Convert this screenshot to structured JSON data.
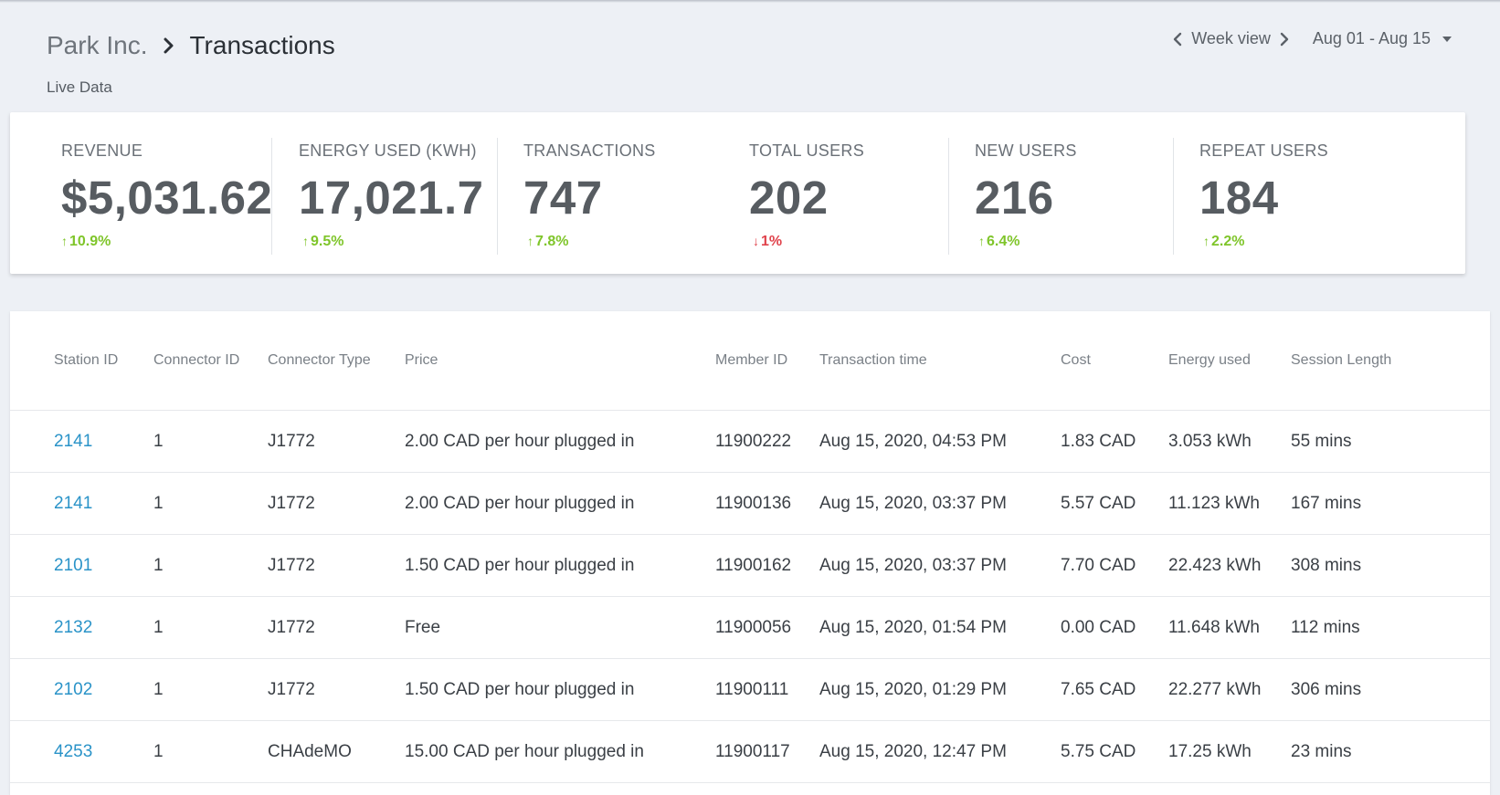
{
  "header": {
    "org": "Park Inc.",
    "page": "Transactions",
    "subtitle": "Live Data",
    "view_label": "Week view",
    "date_range": "Aug 01 - Aug 15"
  },
  "kpis": [
    {
      "label": "REVENUE",
      "value": "$5,031.62",
      "delta": "10.9%",
      "direction": "up"
    },
    {
      "label": "ENERGY USED (KWH)",
      "value": "17,021.7",
      "delta": "9.5%",
      "direction": "up"
    },
    {
      "label": "TRANSACTIONS",
      "value": "747",
      "delta": "7.8%",
      "direction": "up"
    },
    {
      "label": "TOTAL USERS",
      "value": "202",
      "delta": "1%",
      "direction": "down"
    },
    {
      "label": "NEW USERS",
      "value": "216",
      "delta": "6.4%",
      "direction": "up"
    },
    {
      "label": "REPEAT USERS",
      "value": "184",
      "delta": "2.2%",
      "direction": "up"
    }
  ],
  "table": {
    "columns": [
      "Station ID",
      "Connector ID",
      "Connector Type",
      "Price",
      "Member ID",
      "Transaction time",
      "Cost",
      "Energy used",
      "Session Length"
    ],
    "rows": [
      [
        "2141",
        "1",
        "J1772",
        "2.00 CAD per hour plugged in",
        "11900222",
        "Aug 15, 2020, 04:53 PM",
        "1.83 CAD",
        "3.053 kWh",
        "55 mins"
      ],
      [
        "2141",
        "1",
        "J1772",
        "2.00 CAD per hour plugged in",
        "11900136",
        "Aug 15, 2020, 03:37 PM",
        "5.57 CAD",
        "11.123 kWh",
        "167 mins"
      ],
      [
        "2101",
        "1",
        "J1772",
        "1.50 CAD per hour plugged in",
        "11900162",
        "Aug 15, 2020, 03:37 PM",
        "7.70 CAD",
        "22.423 kWh",
        "308 mins"
      ],
      [
        "2132",
        "1",
        "J1772",
        "Free",
        "11900056",
        "Aug 15, 2020, 01:54 PM",
        "0.00 CAD",
        "11.648 kWh",
        "112 mins"
      ],
      [
        "2102",
        "1",
        "J1772",
        "1.50 CAD per hour plugged in",
        "11900111",
        "Aug 15, 2020, 01:29 PM",
        "7.65 CAD",
        "22.277 kWh",
        "306 mins"
      ],
      [
        "4253",
        "1",
        "CHAdeMO",
        "15.00 CAD per hour plugged in",
        "11900117",
        "Aug 15, 2020, 12:47 PM",
        "5.75 CAD",
        "17.25 kWh",
        "23 mins"
      ]
    ]
  },
  "colors": {
    "background": "#edf0f5",
    "link": "#2a93c8",
    "positive": "#7fc52a",
    "negative": "#e0434c"
  },
  "icons": {
    "breadcrumb_separator": "chevron-right-icon",
    "prev": "chevron-left-icon",
    "next": "chevron-right-icon",
    "dropdown": "caret-down-icon"
  }
}
